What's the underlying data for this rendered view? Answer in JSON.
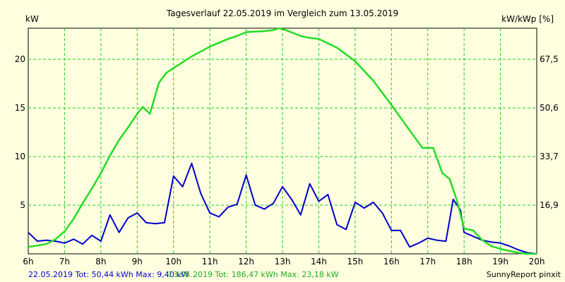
{
  "chart_data": {
    "type": "line",
    "title": "Tagesverlauf 22.05.2019 im Vergleich zum 13.05.2019",
    "ylabel_left": "kW",
    "ylabel_right": "kW/kWp [%]",
    "xlim": [
      6,
      20
    ],
    "ylim": [
      0,
      23.2
    ],
    "x_ticks": [
      "6h",
      "7h",
      "8h",
      "9h",
      "10h",
      "11h",
      "12h",
      "13h",
      "14h",
      "15h",
      "16h",
      "17h",
      "18h",
      "19h",
      "20h"
    ],
    "y_ticks_left": [
      "5",
      "10",
      "15",
      "20"
    ],
    "y_ticks_right": [
      "16,9",
      "33,7",
      "50,6",
      "67,5"
    ],
    "grid": true,
    "series": [
      {
        "name": "22.05.2019",
        "color": "#0000cc",
        "x": [
          6.0,
          6.25,
          6.5,
          6.75,
          7.0,
          7.25,
          7.5,
          7.75,
          8.0,
          8.25,
          8.5,
          8.75,
          9.0,
          9.25,
          9.5,
          9.75,
          10.0,
          10.25,
          10.5,
          10.75,
          11.0,
          11.25,
          11.5,
          11.75,
          12.0,
          12.25,
          12.5,
          12.75,
          13.0,
          13.25,
          13.5,
          13.75,
          14.0,
          14.25,
          14.5,
          14.75,
          15.0,
          15.25,
          15.5,
          15.75,
          16.0,
          16.25,
          16.5,
          16.75,
          17.0,
          17.25,
          17.5,
          17.7,
          17.9,
          18.0,
          18.25,
          18.5,
          18.75,
          19.0,
          19.25,
          19.5,
          19.75,
          20.0
        ],
        "values": [
          2.2,
          1.3,
          1.4,
          1.3,
          1.1,
          1.5,
          1.0,
          1.9,
          1.3,
          4.0,
          2.2,
          3.7,
          4.2,
          3.2,
          3.1,
          3.2,
          8.0,
          6.9,
          9.3,
          6.2,
          4.2,
          3.8,
          4.8,
          5.1,
          8.1,
          5.0,
          4.6,
          5.2,
          6.9,
          5.6,
          4.0,
          7.2,
          5.4,
          6.1,
          3.0,
          2.5,
          5.3,
          4.7,
          5.3,
          4.2,
          2.4,
          2.4,
          0.7,
          1.1,
          1.6,
          1.4,
          1.3,
          5.6,
          4.5,
          2.2,
          1.8,
          1.4,
          1.2,
          1.1,
          0.8,
          0.4,
          0.1,
          0.0
        ]
      },
      {
        "name": "13.05.2019",
        "color": "#22dd22",
        "x": [
          6.0,
          6.5,
          6.75,
          7.0,
          7.25,
          7.5,
          7.75,
          8.0,
          8.25,
          8.5,
          8.75,
          9.0,
          9.15,
          9.35,
          9.6,
          9.8,
          10.0,
          10.5,
          11.0,
          11.5,
          11.75,
          12.0,
          12.5,
          12.75,
          12.9,
          13.1,
          13.5,
          13.75,
          14.0,
          14.5,
          15.0,
          15.5,
          16.0,
          16.5,
          16.85,
          17.0,
          17.15,
          17.4,
          17.6,
          17.8,
          18.0,
          18.25,
          18.5,
          18.75,
          19.0,
          19.5,
          19.75,
          20.0
        ],
        "values": [
          0.7,
          1.0,
          1.5,
          2.3,
          3.6,
          5.2,
          6.7,
          8.3,
          10.1,
          11.7,
          13.0,
          14.4,
          15.1,
          14.4,
          17.6,
          18.6,
          19.1,
          20.3,
          21.3,
          22.1,
          22.4,
          22.8,
          22.9,
          23.0,
          23.2,
          23.0,
          22.4,
          22.2,
          22.1,
          21.2,
          19.8,
          17.8,
          15.3,
          12.7,
          10.9,
          10.9,
          10.9,
          8.3,
          7.7,
          5.5,
          2.6,
          2.4,
          1.4,
          0.8,
          0.5,
          0.1,
          0.0,
          0.0
        ]
      }
    ]
  },
  "footer": {
    "s1_text": "22.05.2019 Tot: 50,44 kWh Max: 9,40 kW",
    "s2_text": "13.05.2019 Tot: 186,47 kWh Max: 23,18 kW",
    "credit": "SunnyReport pinxit"
  }
}
